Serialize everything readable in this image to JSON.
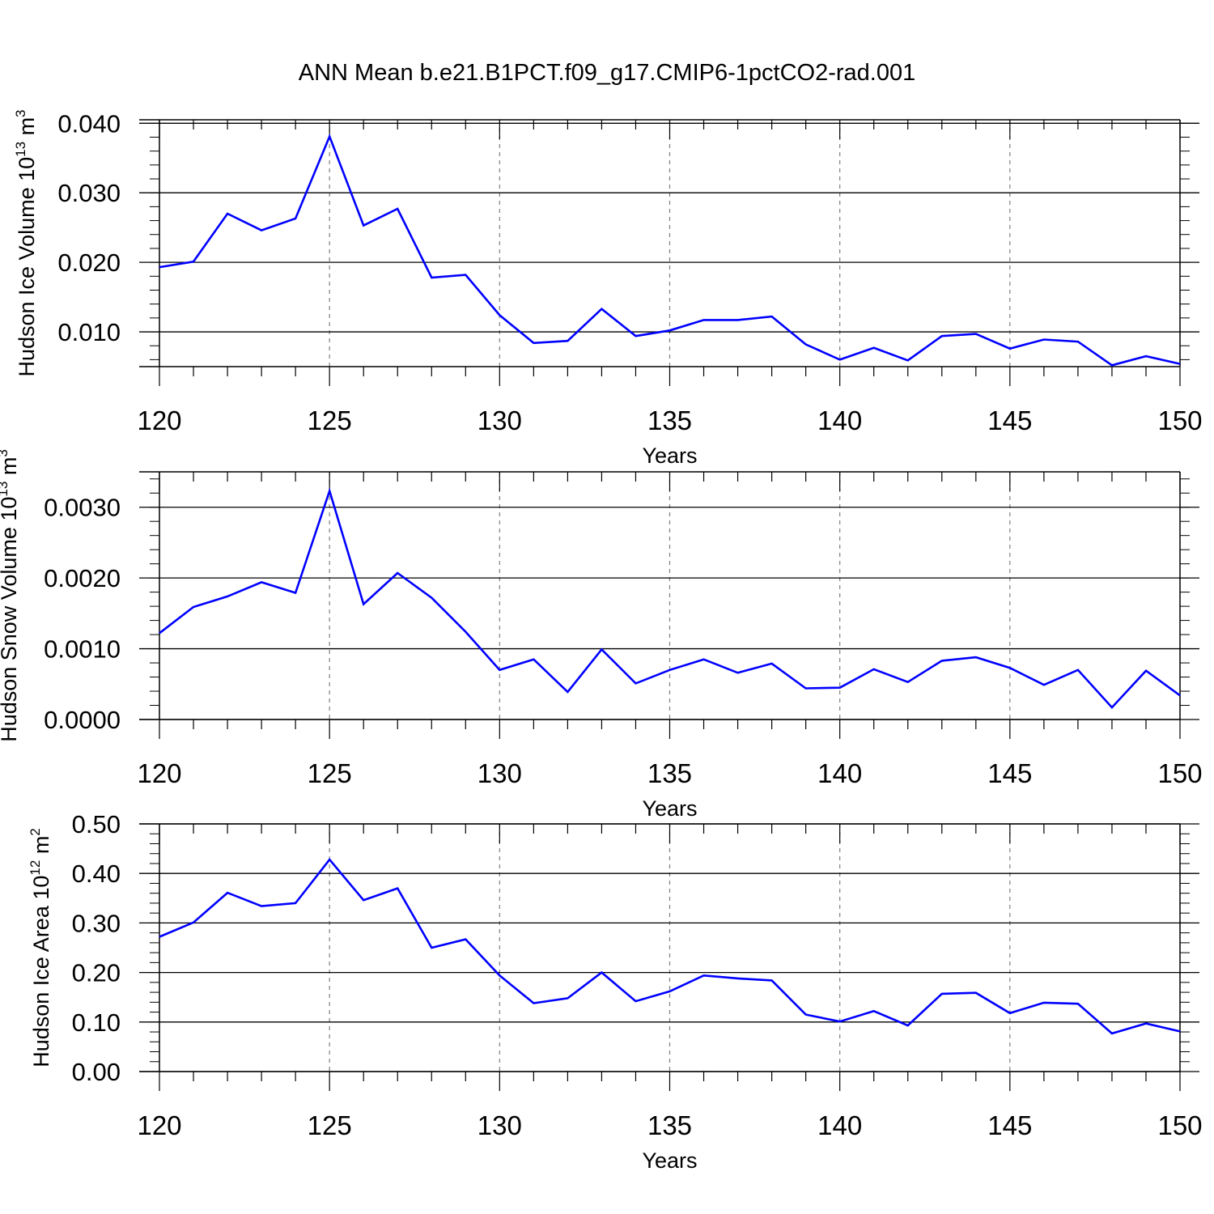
{
  "title": "ANN Mean b.e21.B1PCT.f09_g17.CMIP6-1pctCO2-rad.001",
  "colors": {
    "line": "#0000ff",
    "axis": "#000000",
    "grid": "#7f7f7f"
  },
  "chart_data": [
    {
      "type": "line",
      "ylabel": "Hudson Ice Volume 10",
      "ylabel_exp": "13",
      "ylabel_unit": " m",
      "ylabel_unit_exp": "3",
      "xlabel": "Years",
      "xlim": [
        120,
        150
      ],
      "ylim": [
        0.005,
        0.0405
      ],
      "xticks": [
        120,
        125,
        130,
        135,
        140,
        145,
        150
      ],
      "xtick_labels": [
        "120",
        "125",
        "130",
        "135",
        "140",
        "145",
        "150"
      ],
      "yticks": [
        0.01,
        0.02,
        0.03,
        0.04
      ],
      "ytick_labels": [
        "0.010",
        "0.020",
        "0.030",
        "0.040"
      ],
      "y_minor_step": 0.002,
      "grid": "dashed vertical at major x ticks",
      "x": [
        120,
        121,
        122,
        123,
        124,
        125,
        126,
        127,
        128,
        129,
        130,
        131,
        132,
        133,
        134,
        135,
        136,
        137,
        138,
        139,
        140,
        141,
        142,
        143,
        144,
        145,
        146,
        147,
        148,
        149,
        150
      ],
      "series": [
        {
          "values": [
            0.0193,
            0.0201,
            0.027,
            0.0246,
            0.0263,
            0.0381,
            0.0253,
            0.0277,
            0.0178,
            0.0182,
            0.0124,
            0.0084,
            0.0087,
            0.0133,
            0.0094,
            0.0102,
            0.0117,
            0.0117,
            0.0122,
            0.0082,
            0.006,
            0.0077,
            0.0059,
            0.0094,
            0.0097,
            0.0076,
            0.0089,
            0.0086,
            0.0052,
            0.0065,
            0.0054
          ]
        }
      ]
    },
    {
      "type": "line",
      "ylabel": "Hudson Snow Volume 10",
      "ylabel_exp": "13",
      "ylabel_unit": " m",
      "ylabel_unit_exp": "3",
      "xlabel": "Years",
      "xlim": [
        120,
        150
      ],
      "ylim": [
        0.0,
        0.0035
      ],
      "xticks": [
        120,
        125,
        130,
        135,
        140,
        145,
        150
      ],
      "xtick_labels": [
        "120",
        "125",
        "130",
        "135",
        "140",
        "145",
        "150"
      ],
      "yticks": [
        0.0,
        0.001,
        0.002,
        0.003
      ],
      "ytick_labels": [
        "0.0000",
        "0.0010",
        "0.0020",
        "0.0030"
      ],
      "y_minor_step": 0.0002,
      "grid": "dashed vertical at major x ticks",
      "x": [
        120,
        121,
        122,
        123,
        124,
        125,
        126,
        127,
        128,
        129,
        130,
        131,
        132,
        133,
        134,
        135,
        136,
        137,
        138,
        139,
        140,
        141,
        142,
        143,
        144,
        145,
        146,
        147,
        148,
        149,
        150
      ],
      "series": [
        {
          "values": [
            0.00122,
            0.00159,
            0.00174,
            0.00194,
            0.00179,
            0.00323,
            0.00163,
            0.00207,
            0.00172,
            0.00124,
            0.0007,
            0.00085,
            0.00039,
            0.00099,
            0.00051,
            0.0007,
            0.00085,
            0.00066,
            0.00079,
            0.00044,
            0.00045,
            0.00071,
            0.00053,
            0.00083,
            0.00088,
            0.00073,
            0.00049,
            0.0007,
            0.00017,
            0.00069,
            0.00034
          ]
        }
      ]
    },
    {
      "type": "line",
      "ylabel": "Hudson Ice Area 10",
      "ylabel_exp": "12",
      "ylabel_unit": " m",
      "ylabel_unit_exp": "2",
      "xlabel": "Years",
      "xlim": [
        120,
        150
      ],
      "ylim": [
        0.0,
        0.5
      ],
      "xticks": [
        120,
        125,
        130,
        135,
        140,
        145,
        150
      ],
      "xtick_labels": [
        "120",
        "125",
        "130",
        "135",
        "140",
        "145",
        "150"
      ],
      "yticks": [
        0.0,
        0.1,
        0.2,
        0.3,
        0.4,
        0.5
      ],
      "ytick_labels": [
        "0.00",
        "0.10",
        "0.20",
        "0.30",
        "0.40",
        "0.50"
      ],
      "y_minor_step": 0.02,
      "grid": "dashed vertical at major x ticks",
      "x": [
        120,
        121,
        122,
        123,
        124,
        125,
        126,
        127,
        128,
        129,
        130,
        131,
        132,
        133,
        134,
        135,
        136,
        137,
        138,
        139,
        140,
        141,
        142,
        143,
        144,
        145,
        146,
        147,
        148,
        149,
        150
      ],
      "series": [
        {
          "values": [
            0.272,
            0.301,
            0.361,
            0.334,
            0.34,
            0.428,
            0.346,
            0.37,
            0.25,
            0.267,
            0.194,
            0.138,
            0.148,
            0.2,
            0.142,
            0.162,
            0.194,
            0.188,
            0.184,
            0.115,
            0.101,
            0.122,
            0.093,
            0.157,
            0.159,
            0.118,
            0.139,
            0.137,
            0.077,
            0.097,
            0.081
          ]
        }
      ]
    }
  ]
}
